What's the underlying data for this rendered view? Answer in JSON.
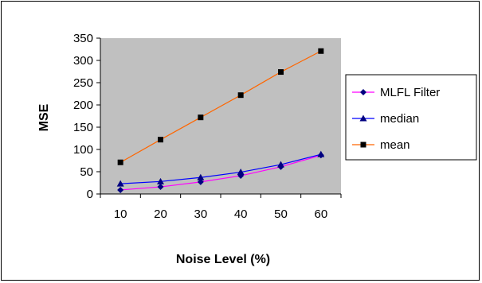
{
  "chart_data": {
    "type": "line",
    "x": [
      10,
      20,
      30,
      40,
      50,
      60
    ],
    "xlabel": "Noise Level (%)",
    "ylabel": "MSE",
    "ylim": [
      0,
      350
    ],
    "yticks": [
      0,
      50,
      100,
      150,
      200,
      250,
      300,
      350
    ],
    "grid": false,
    "plot_background": "#c0c0c0",
    "legend": "right",
    "series": [
      {
        "name": "MLFL Filter",
        "values": [
          9,
          16,
          27,
          41,
          61,
          87
        ],
        "color": "#ff00ff",
        "marker_color": "#000080",
        "marker": "diamond"
      },
      {
        "name": "median",
        "values": [
          23,
          28,
          37,
          49,
          66,
          89
        ],
        "color": "#0000ff",
        "marker_color": "#000080",
        "marker": "triangle"
      },
      {
        "name": "mean",
        "values": [
          71,
          122,
          172,
          222,
          274,
          321
        ],
        "color": "#ff6600",
        "marker_color": "#000000",
        "marker": "square"
      }
    ]
  }
}
